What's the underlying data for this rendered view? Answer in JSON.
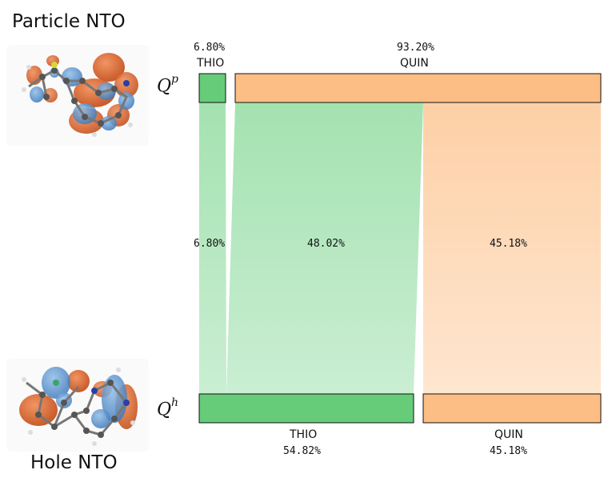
{
  "particle_title": "Particle NTO",
  "hole_title": "Hole NTO",
  "q_top": {
    "base": "Q",
    "sup": "p"
  },
  "q_bottom": {
    "base": "Q",
    "sup": "h"
  },
  "top_blocks": [
    {
      "label": "THIO",
      "percent": "6.80%",
      "fraction": 0.068
    },
    {
      "label": "QUIN",
      "percent": "93.20%",
      "fraction": 0.932
    }
  ],
  "bottom_blocks": [
    {
      "label": "THIO",
      "percent": "54.82%",
      "fraction": 0.5482
    },
    {
      "label": "QUIN",
      "percent": "45.18%",
      "fraction": 0.4518
    }
  ],
  "flows": [
    {
      "from": "THIO",
      "to": "THIO",
      "percent": "6.80%",
      "fraction": 0.068
    },
    {
      "from": "QUIN",
      "to": "THIO",
      "percent": "48.02%",
      "fraction": 0.4802
    },
    {
      "from": "QUIN",
      "to": "QUIN",
      "percent": "45.18%",
      "fraction": 0.4518
    }
  ],
  "colors": {
    "thio": "#66cc7a",
    "quin": "#fdbe85",
    "orbital_orange": "#d9531e",
    "orbital_blue": "#4a86c8"
  }
}
